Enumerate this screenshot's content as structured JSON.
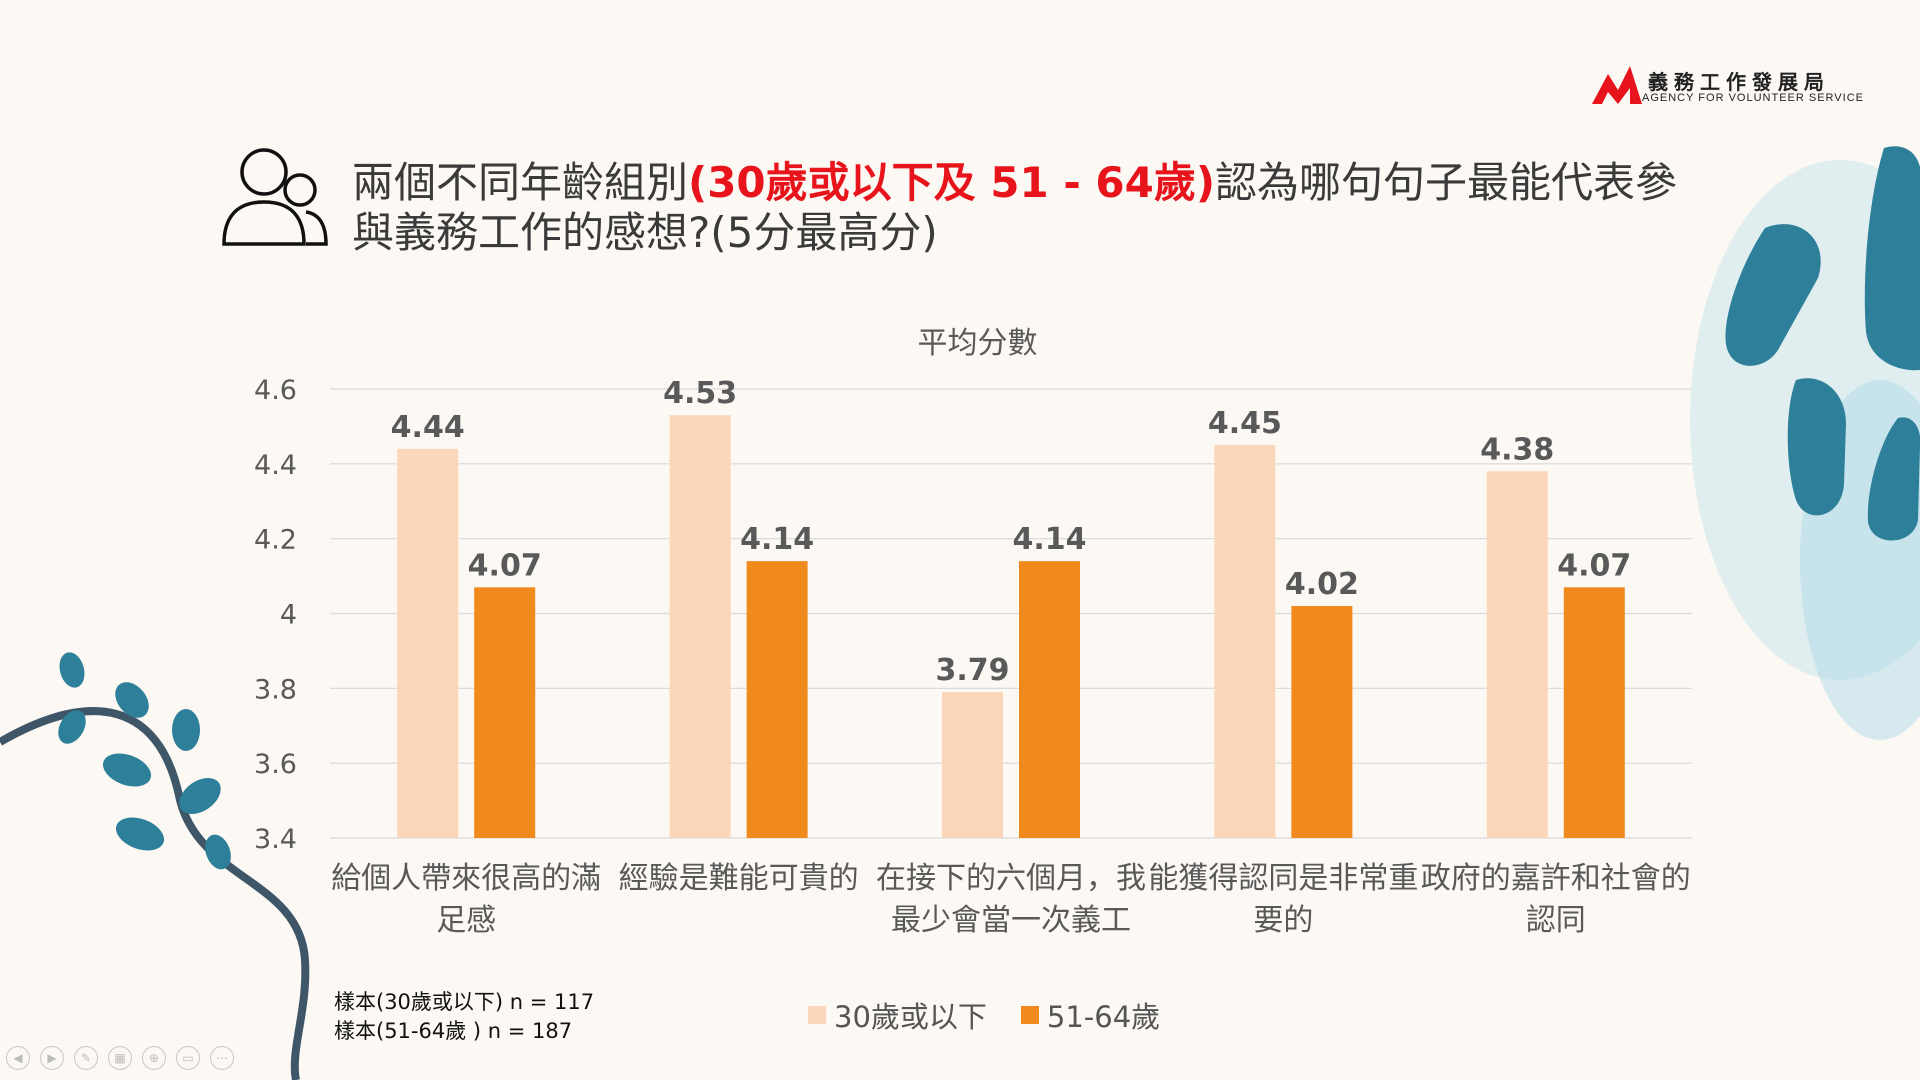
{
  "logo": {
    "chinese": "義務工作發展局",
    "english": "AGENCY FOR VOLUNTEER SERVICE"
  },
  "title": {
    "part1": "兩個不同年齡組別",
    "highlight": "(30歲或以下及 51 - 64歲)",
    "part2": "認為哪句句子最能代表參與義務工作的感想?(5分最高分)"
  },
  "sample": {
    "line1": "樣本(30歲或以下) n = 117",
    "line2": "樣本(51-64歲 ) n = 187"
  },
  "colors": {
    "series1": "#fbd6b8",
    "series2": "#f08a1d",
    "highlight": "#e8141b",
    "accent_teal": "#2e7f99"
  },
  "chart_data": {
    "type": "bar",
    "title": "平均分數",
    "categories": [
      "給個人帶來很高的滿足感",
      "經驗是難能可貴的",
      "在接下的六個月，我最少會當一次義工",
      "能獲得認同是非常重要的",
      "政府的嘉許和社會的認同"
    ],
    "series": [
      {
        "name": "30歲或以下",
        "values": [
          4.44,
          4.53,
          3.79,
          4.45,
          4.38
        ]
      },
      {
        "name": "51-64歲",
        "values": [
          4.07,
          4.14,
          4.14,
          4.02,
          4.07
        ]
      }
    ],
    "ylim": [
      3.4,
      4.6
    ],
    "yticks": [
      4.6,
      4.4,
      4.2,
      4,
      3.8,
      3.6,
      3.4
    ],
    "grid": true,
    "legend": "bottom"
  }
}
